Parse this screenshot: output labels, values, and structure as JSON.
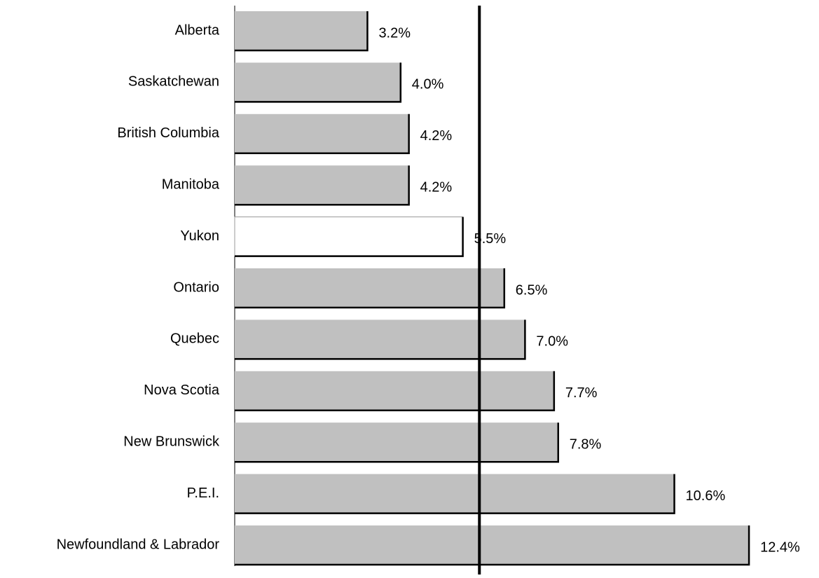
{
  "chart_data": {
    "type": "hbar",
    "categories": [
      "Alberta",
      "Saskatchewan",
      "British Columbia",
      "Manitoba",
      "Yukon",
      "Ontario",
      "Quebec",
      "Nova Scotia",
      "New Brunswick",
      "P.E.I.",
      "Newfoundland & Labrador"
    ],
    "values": [
      3.2,
      4.0,
      4.2,
      4.2,
      5.5,
      6.5,
      7.0,
      7.7,
      7.8,
      10.6,
      12.4
    ],
    "value_labels": [
      "3.2%",
      "4.0%",
      "4.2%",
      "4.2%",
      "5.5%",
      "6.5%",
      "7.0%",
      "7.7%",
      "7.8%",
      "10.6%",
      "12.4%"
    ],
    "colors": [
      "#c0c0c0",
      "#c0c0c0",
      "#c0c0c0",
      "#c0c0c0",
      "#ffffff",
      "#c0c0c0",
      "#c0c0c0",
      "#c0c0c0",
      "#c0c0c0",
      "#c0c0c0",
      "#c0c0c0"
    ],
    "xlim": [
      0,
      12.5
    ],
    "reference_value": 5.9
  }
}
